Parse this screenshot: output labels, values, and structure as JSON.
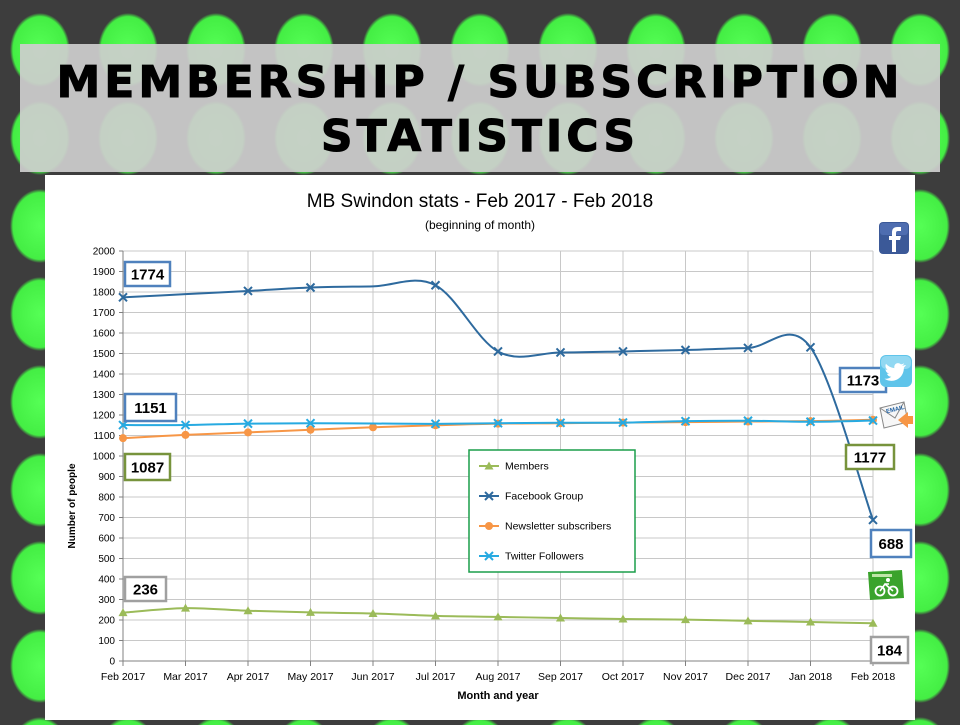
{
  "page": {
    "banner_line1": "MEMBERSHIP / SUBSCRIPTION",
    "banner_line2": "STATISTICS"
  },
  "icons": {
    "facebook": "facebook-icon",
    "twitter": "twitter-icon",
    "email": "email-icon",
    "cycling": "cycling-icon"
  },
  "chart_data": {
    "type": "line",
    "title": "MB Swindon stats - Feb 2017 - Feb 2018",
    "subtitle": "(beginning of month)",
    "xlabel": "Month and year",
    "ylabel": "Number of people",
    "ylim": [
      0,
      2000
    ],
    "ytick_step": 100,
    "grid": true,
    "legend_position": "center",
    "categories": [
      "Feb 2017",
      "Mar 2017",
      "Apr 2017",
      "May 2017",
      "Jun 2017",
      "Jul 2017",
      "Aug 2017",
      "Sep 2017",
      "Oct 2017",
      "Nov 2017",
      "Dec 2017",
      "Jan 2018",
      "Feb 2018"
    ],
    "series": [
      {
        "name": "Members",
        "color": "#9bbb59",
        "marker": "triangle",
        "values": [
          236,
          258,
          245,
          237,
          232,
          220,
          215,
          210,
          205,
          202,
          196,
          190,
          184
        ]
      },
      {
        "name": "Facebook Group",
        "color": "#2e6a9e",
        "marker": "x",
        "values": [
          1774,
          null,
          1805,
          1822,
          null,
          1833,
          1510,
          1505,
          1510,
          1517,
          1527,
          1530,
          688
        ]
      },
      {
        "name": "Newsletter subscribers",
        "color": "#f79646",
        "marker": "circle",
        "values": [
          1087,
          1103,
          1115,
          1128,
          1140,
          1150,
          1158,
          1160,
          1163,
          1165,
          1168,
          1170,
          1177
        ]
      },
      {
        "name": "Twitter Followers",
        "color": "#27aae1",
        "marker": "x",
        "values": [
          1151,
          1151,
          1158,
          1160,
          null,
          1157,
          1160,
          1162,
          1163,
          1170,
          1172,
          1167,
          1173
        ]
      }
    ],
    "callouts": [
      {
        "text": "1774",
        "border": "#4f81bd"
      },
      {
        "text": "1151",
        "border": "#4f81bd"
      },
      {
        "text": "1087",
        "border": "#77933c"
      },
      {
        "text": "236",
        "border": "#a0a0a0"
      },
      {
        "text": "1173",
        "border": "#4f81bd"
      },
      {
        "text": "1177",
        "border": "#77933c"
      },
      {
        "text": "688",
        "border": "#4f81bd"
      },
      {
        "text": "184",
        "border": "#a0a0a0"
      }
    ]
  }
}
